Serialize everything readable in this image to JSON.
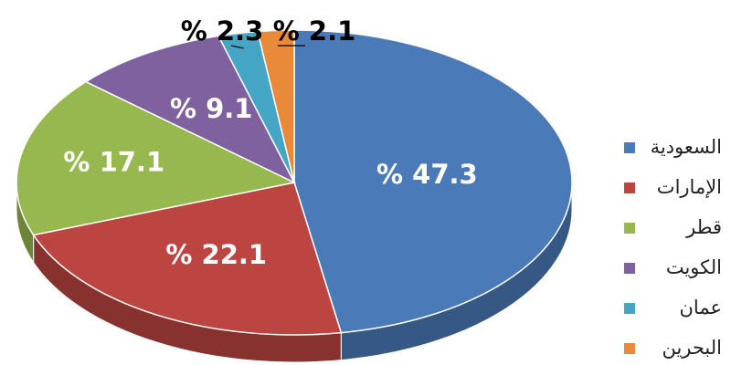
{
  "chart_data": {
    "type": "pie",
    "categories": [
      "السعودية",
      "الإمارات",
      "قطر",
      "الكويت",
      "عمان",
      "البحرين"
    ],
    "values": [
      47.3,
      22.1,
      17.1,
      9.1,
      2.3,
      2.1
    ],
    "data_labels": [
      "% 47.3",
      "% 22.1",
      "% 17.1",
      "% 9.1",
      "% 2.3",
      "% 2.1"
    ],
    "colors": [
      "#4a7ab7",
      "#bd4541",
      "#97b84f",
      "#7e619e",
      "#45a5c4",
      "#e9893a"
    ],
    "title": "",
    "legend_placement": "right",
    "style": "3d-exploded"
  }
}
